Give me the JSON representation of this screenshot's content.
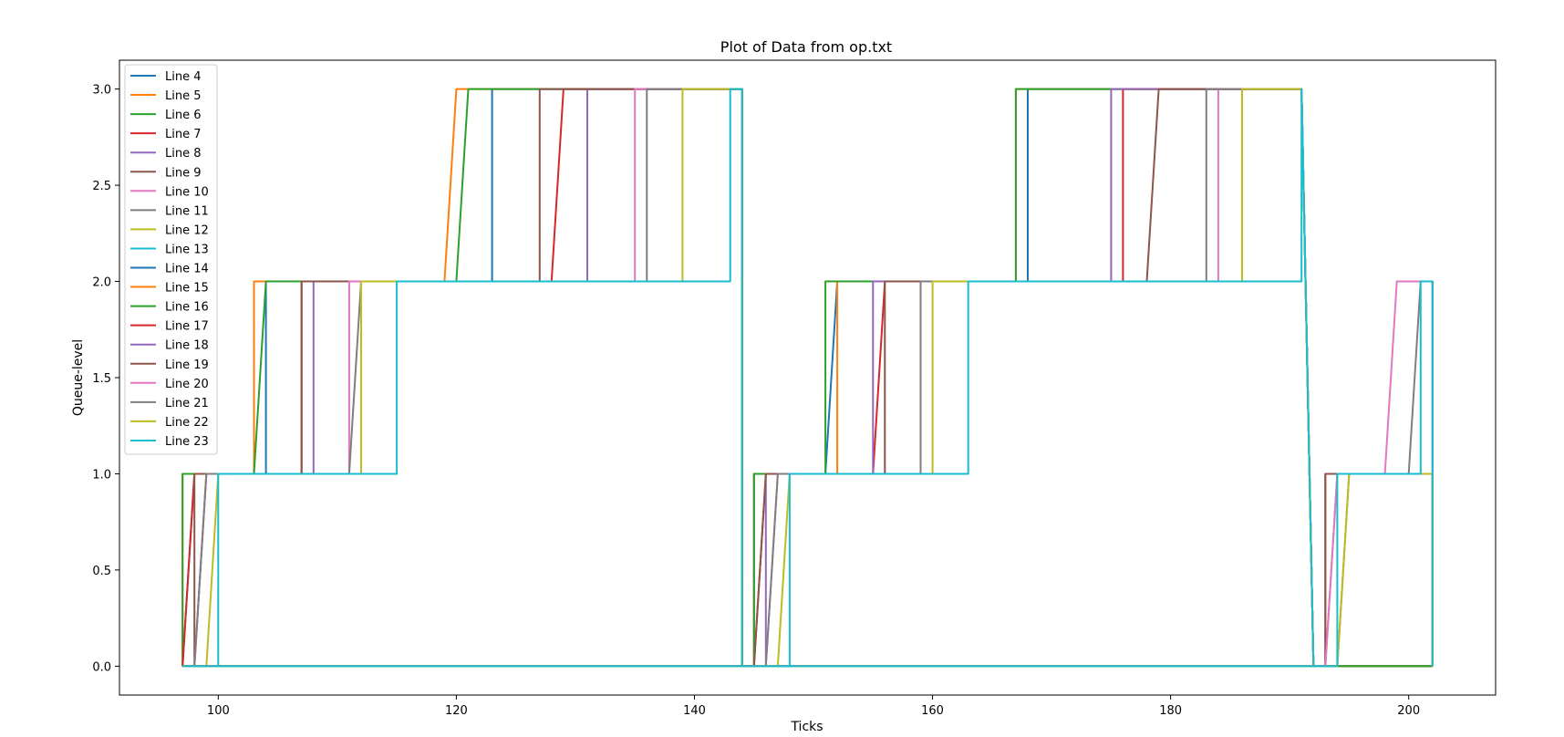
{
  "chart_data": {
    "type": "line",
    "title": "Plot of Data from op.txt",
    "xlabel": "Ticks",
    "ylabel": "Queue-level",
    "xlim": [
      91.7,
      207.3
    ],
    "ylim": [
      -0.15,
      3.15
    ],
    "x_ticks": [
      100,
      120,
      140,
      160,
      180,
      200
    ],
    "x_tick_labels": [
      "100",
      "120",
      "140",
      "160",
      "180",
      "200"
    ],
    "y_ticks": [
      0,
      0.5,
      1,
      1.5,
      2,
      2.5,
      3
    ],
    "y_tick_labels": [
      "0.0",
      "0.5",
      "1.0",
      "1.5",
      "2.0",
      "2.5",
      "3.0"
    ],
    "grid": false,
    "legend_position": "upper-left",
    "series": [
      {
        "name": "Line 4",
        "color": "#1f77b4",
        "points": [
          [
            97,
            0
          ],
          [
            98,
            1
          ],
          [
            104,
            1
          ],
          [
            104,
            2
          ],
          [
            123,
            2
          ],
          [
            123,
            3
          ],
          [
            144,
            3
          ],
          [
            144,
            0
          ],
          [
            202,
            0
          ]
        ]
      },
      {
        "name": "Line 5",
        "color": "#ff7f0e",
        "points": [
          [
            97,
            0
          ],
          [
            97,
            1
          ],
          [
            103,
            1
          ],
          [
            103,
            2
          ],
          [
            119,
            2
          ],
          [
            120,
            3
          ],
          [
            144,
            3
          ],
          [
            144,
            0
          ],
          [
            202,
            0
          ]
        ]
      },
      {
        "name": "Line 6",
        "color": "#2ca02c",
        "points": [
          [
            97,
            0
          ],
          [
            97,
            1
          ],
          [
            103,
            1
          ],
          [
            104,
            2
          ],
          [
            120,
            2
          ],
          [
            121,
            3
          ],
          [
            144,
            3
          ],
          [
            144,
            0
          ],
          [
            202,
            0
          ]
        ]
      },
      {
        "name": "Line 7",
        "color": "#d62728",
        "points": [
          [
            97,
            0
          ],
          [
            98,
            1
          ],
          [
            107,
            1
          ],
          [
            107,
            2
          ],
          [
            128,
            2
          ],
          [
            129,
            3
          ],
          [
            144,
            3
          ],
          [
            144,
            0
          ],
          [
            202,
            0
          ]
        ]
      },
      {
        "name": "Line 8",
        "color": "#9467bd",
        "points": [
          [
            97,
            0
          ],
          [
            98,
            0
          ],
          [
            99,
            1
          ],
          [
            108,
            1
          ],
          [
            108,
            2
          ],
          [
            131,
            2
          ],
          [
            131,
            3
          ],
          [
            144,
            3
          ],
          [
            144,
            0
          ],
          [
            202,
            0
          ]
        ]
      },
      {
        "name": "Line 9",
        "color": "#8c564b",
        "points": [
          [
            97,
            0
          ],
          [
            98,
            0
          ],
          [
            98,
            1
          ],
          [
            107,
            1
          ],
          [
            107,
            2
          ],
          [
            127,
            2
          ],
          [
            127,
            3
          ],
          [
            144,
            3
          ],
          [
            144,
            0
          ],
          [
            202,
            0
          ]
        ]
      },
      {
        "name": "Line 10",
        "color": "#e377c2",
        "points": [
          [
            97,
            0
          ],
          [
            98,
            0
          ],
          [
            99,
            1
          ],
          [
            111,
            1
          ],
          [
            111,
            2
          ],
          [
            135,
            2
          ],
          [
            135,
            3
          ],
          [
            144,
            3
          ],
          [
            144,
            0
          ],
          [
            202,
            0
          ]
        ]
      },
      {
        "name": "Line 11",
        "color": "#7f7f7f",
        "points": [
          [
            97,
            0
          ],
          [
            98,
            0
          ],
          [
            99,
            1
          ],
          [
            111,
            1
          ],
          [
            112,
            2
          ],
          [
            136,
            2
          ],
          [
            136,
            3
          ],
          [
            144,
            3
          ],
          [
            144,
            0
          ],
          [
            202,
            0
          ]
        ]
      },
      {
        "name": "Line 12",
        "color": "#bcbd22",
        "points": [
          [
            97,
            0
          ],
          [
            99,
            0
          ],
          [
            100,
            1
          ],
          [
            112,
            1
          ],
          [
            112,
            2
          ],
          [
            139,
            2
          ],
          [
            139,
            3
          ],
          [
            144,
            3
          ],
          [
            144,
            0
          ],
          [
            202,
            0
          ]
        ]
      },
      {
        "name": "Line 13",
        "color": "#17becf",
        "points": [
          [
            97,
            0
          ],
          [
            100,
            0
          ],
          [
            100,
            1
          ],
          [
            115,
            1
          ],
          [
            115,
            2
          ],
          [
            143,
            2
          ],
          [
            143,
            3
          ],
          [
            144,
            3
          ],
          [
            144,
            0
          ],
          [
            202,
            0
          ]
        ]
      },
      {
        "name": "Line 14",
        "color": "#1f77b4",
        "points": [
          [
            97,
            0
          ],
          [
            145,
            0
          ],
          [
            145,
            1
          ],
          [
            151,
            1
          ],
          [
            152,
            2
          ],
          [
            168,
            2
          ],
          [
            168,
            3
          ],
          [
            191,
            3
          ],
          [
            192,
            0
          ],
          [
            202,
            0
          ]
        ]
      },
      {
        "name": "Line 15",
        "color": "#ff7f0e",
        "points": [
          [
            97,
            0
          ],
          [
            145,
            0
          ],
          [
            145,
            1
          ],
          [
            152,
            1
          ],
          [
            152,
            2
          ],
          [
            167,
            2
          ],
          [
            167,
            3
          ],
          [
            191,
            3
          ],
          [
            192,
            0
          ],
          [
            202,
            0
          ]
        ]
      },
      {
        "name": "Line 16",
        "color": "#2ca02c",
        "points": [
          [
            97,
            0
          ],
          [
            145,
            0
          ],
          [
            145,
            1
          ],
          [
            151,
            1
          ],
          [
            151,
            2
          ],
          [
            167,
            2
          ],
          [
            167,
            3
          ],
          [
            191,
            3
          ],
          [
            192,
            0
          ],
          [
            202,
            0
          ]
        ]
      },
      {
        "name": "Line 17",
        "color": "#d62728",
        "points": [
          [
            97,
            0
          ],
          [
            145,
            0
          ],
          [
            146,
            1
          ],
          [
            155,
            1
          ],
          [
            156,
            2
          ],
          [
            176,
            2
          ],
          [
            176,
            3
          ],
          [
            191,
            3
          ],
          [
            192,
            0
          ],
          [
            193,
            0
          ],
          [
            193,
            1
          ],
          [
            202,
            1
          ],
          [
            202,
            0
          ]
        ]
      },
      {
        "name": "Line 18",
        "color": "#9467bd",
        "points": [
          [
            97,
            0
          ],
          [
            146,
            0
          ],
          [
            146,
            1
          ],
          [
            155,
            1
          ],
          [
            155,
            2
          ],
          [
            175,
            2
          ],
          [
            175,
            3
          ],
          [
            191,
            3
          ],
          [
            192,
            0
          ],
          [
            193,
            0
          ],
          [
            194,
            1
          ],
          [
            202,
            1
          ],
          [
            202,
            0
          ]
        ]
      },
      {
        "name": "Line 19",
        "color": "#8c564b",
        "points": [
          [
            97,
            0
          ],
          [
            145,
            0
          ],
          [
            146,
            1
          ],
          [
            156,
            1
          ],
          [
            156,
            2
          ],
          [
            178,
            2
          ],
          [
            179,
            3
          ],
          [
            191,
            3
          ],
          [
            192,
            0
          ],
          [
            193,
            0
          ],
          [
            193,
            1
          ],
          [
            202,
            1
          ],
          [
            202,
            0
          ]
        ]
      },
      {
        "name": "Line 20",
        "color": "#e377c2",
        "points": [
          [
            97,
            0
          ],
          [
            146,
            0
          ],
          [
            147,
            1
          ],
          [
            159,
            1
          ],
          [
            159,
            2
          ],
          [
            184,
            2
          ],
          [
            184,
            3
          ],
          [
            191,
            3
          ],
          [
            192,
            0
          ],
          [
            193,
            0
          ],
          [
            194,
            1
          ],
          [
            198,
            1
          ],
          [
            199,
            2
          ],
          [
            202,
            2
          ],
          [
            202,
            0
          ]
        ]
      },
      {
        "name": "Line 21",
        "color": "#7f7f7f",
        "points": [
          [
            97,
            0
          ],
          [
            146,
            0
          ],
          [
            147,
            1
          ],
          [
            159,
            1
          ],
          [
            159,
            2
          ],
          [
            183,
            2
          ],
          [
            183,
            3
          ],
          [
            191,
            3
          ],
          [
            192,
            0
          ],
          [
            194,
            0
          ],
          [
            195,
            1
          ],
          [
            200,
            1
          ],
          [
            201,
            2
          ],
          [
            202,
            2
          ],
          [
            202,
            0
          ]
        ]
      },
      {
        "name": "Line 22",
        "color": "#bcbd22",
        "points": [
          [
            97,
            0
          ],
          [
            147,
            0
          ],
          [
            148,
            1
          ],
          [
            160,
            1
          ],
          [
            160,
            2
          ],
          [
            186,
            2
          ],
          [
            186,
            3
          ],
          [
            191,
            3
          ],
          [
            192,
            0
          ],
          [
            194,
            0
          ],
          [
            195,
            1
          ],
          [
            202,
            1
          ],
          [
            202,
            0
          ]
        ]
      },
      {
        "name": "Line 23",
        "color": "#17becf",
        "points": [
          [
            97,
            0
          ],
          [
            148,
            0
          ],
          [
            148,
            1
          ],
          [
            163,
            1
          ],
          [
            163,
            2
          ],
          [
            191,
            2
          ],
          [
            191,
            3
          ],
          [
            192,
            0
          ],
          [
            194,
            0
          ],
          [
            194,
            1
          ],
          [
            201,
            1
          ],
          [
            201,
            2
          ],
          [
            202,
            2
          ],
          [
            202,
            0
          ]
        ]
      }
    ]
  }
}
